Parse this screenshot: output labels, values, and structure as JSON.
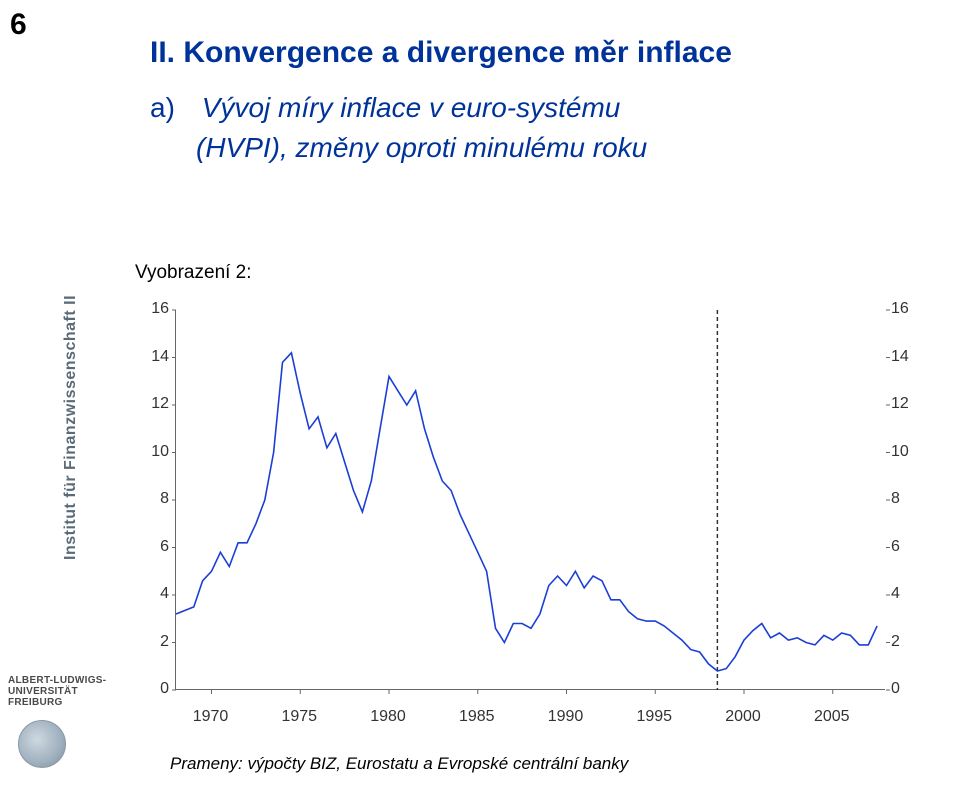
{
  "page_number": "6",
  "title": "II.  Konvergence a divergence měr inflace",
  "bullet_a_label": "a)",
  "bullet_a_text": "Vývoj míry inflace v euro-systému",
  "bullet_a_line2": "(HVPI), změny oproti minulému roku",
  "figure_label": "Vyobrazení 2:",
  "footnote": "Prameny: výpočty BIZ, Eurostatu a Evropské centrální banky",
  "sidebar": {
    "institute_line": "Institut für Finanzwissenschaft II",
    "uni_line1": "ALBERT-LUDWIGS-",
    "uni_line2": "UNIVERSITÄT",
    "uni_line3": "FREIBURG"
  },
  "chart": {
    "type": "line",
    "line_color": "#1b3fd6",
    "line_width": 1.6,
    "background_color": "#ffffff",
    "axis_color": "#666666",
    "tick_fontsize": 16,
    "tick_color": "#333333",
    "xlim": [
      1968,
      2008
    ],
    "ylim": [
      0,
      16
    ],
    "ytick_step": 2,
    "yticks": [
      0,
      2,
      4,
      6,
      8,
      10,
      12,
      14,
      16
    ],
    "xticks": [
      1970,
      1975,
      1980,
      1985,
      1990,
      1995,
      2000,
      2005
    ],
    "divider_x": 1998.5,
    "divider_style": "dashed",
    "divider_color": "#333333",
    "data": [
      [
        1968.0,
        3.2
      ],
      [
        1969.0,
        3.5
      ],
      [
        1969.5,
        4.6
      ],
      [
        1970.0,
        5.0
      ],
      [
        1970.5,
        5.8
      ],
      [
        1971.0,
        5.2
      ],
      [
        1971.5,
        6.2
      ],
      [
        1972.0,
        6.2
      ],
      [
        1972.5,
        7.0
      ],
      [
        1973.0,
        8.0
      ],
      [
        1973.5,
        10.0
      ],
      [
        1974.0,
        13.8
      ],
      [
        1974.5,
        14.2
      ],
      [
        1975.0,
        12.5
      ],
      [
        1975.5,
        11.0
      ],
      [
        1976.0,
        11.5
      ],
      [
        1976.5,
        10.2
      ],
      [
        1977.0,
        10.8
      ],
      [
        1977.5,
        9.6
      ],
      [
        1978.0,
        8.4
      ],
      [
        1978.5,
        7.5
      ],
      [
        1979.0,
        8.8
      ],
      [
        1979.5,
        11.0
      ],
      [
        1980.0,
        13.2
      ],
      [
        1980.5,
        12.6
      ],
      [
        1981.0,
        12.0
      ],
      [
        1981.5,
        12.6
      ],
      [
        1982.0,
        11.0
      ],
      [
        1982.5,
        9.8
      ],
      [
        1983.0,
        8.8
      ],
      [
        1983.5,
        8.4
      ],
      [
        1984.0,
        7.4
      ],
      [
        1984.5,
        6.6
      ],
      [
        1985.0,
        5.8
      ],
      [
        1985.5,
        5.0
      ],
      [
        1986.0,
        2.6
      ],
      [
        1986.5,
        2.0
      ],
      [
        1987.0,
        2.8
      ],
      [
        1987.5,
        2.8
      ],
      [
        1988.0,
        2.6
      ],
      [
        1988.5,
        3.2
      ],
      [
        1989.0,
        4.4
      ],
      [
        1989.5,
        4.8
      ],
      [
        1990.0,
        4.4
      ],
      [
        1990.5,
        5.0
      ],
      [
        1991.0,
        4.3
      ],
      [
        1991.5,
        4.8
      ],
      [
        1992.0,
        4.6
      ],
      [
        1992.5,
        3.8
      ],
      [
        1993.0,
        3.8
      ],
      [
        1993.5,
        3.3
      ],
      [
        1994.0,
        3.0
      ],
      [
        1994.5,
        2.9
      ],
      [
        1995.0,
        2.9
      ],
      [
        1995.5,
        2.7
      ],
      [
        1996.0,
        2.4
      ],
      [
        1996.5,
        2.1
      ],
      [
        1997.0,
        1.7
      ],
      [
        1997.5,
        1.6
      ],
      [
        1998.0,
        1.1
      ],
      [
        1998.5,
        0.8
      ],
      [
        1999.0,
        0.9
      ],
      [
        1999.5,
        1.4
      ],
      [
        2000.0,
        2.1
      ],
      [
        2000.5,
        2.5
      ],
      [
        2001.0,
        2.8
      ],
      [
        2001.5,
        2.2
      ],
      [
        2002.0,
        2.4
      ],
      [
        2002.5,
        2.1
      ],
      [
        2003.0,
        2.2
      ],
      [
        2003.5,
        2.0
      ],
      [
        2004.0,
        1.9
      ],
      [
        2004.5,
        2.3
      ],
      [
        2005.0,
        2.1
      ],
      [
        2005.5,
        2.4
      ],
      [
        2006.0,
        2.3
      ],
      [
        2006.5,
        1.9
      ],
      [
        2007.0,
        1.9
      ],
      [
        2007.5,
        2.7
      ]
    ]
  }
}
